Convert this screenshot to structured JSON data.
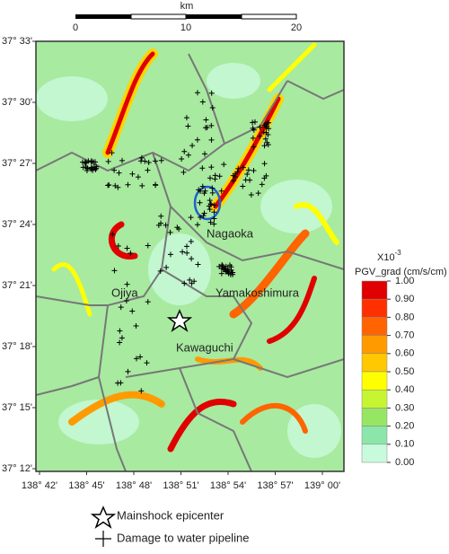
{
  "scale_bar": {
    "unit": "km",
    "ticks": [
      0,
      10,
      20
    ]
  },
  "lat_labels": [
    "37° 33'",
    "37° 30'",
    "37° 27'",
    "37° 24'",
    "37° 21'",
    "37° 18'",
    "37° 15'",
    "37° 12'"
  ],
  "lon_labels": [
    "138° 42'",
    "138° 45'",
    "138° 48'",
    "138° 51'",
    "138° 54'",
    "138° 57'",
    "139° 00'"
  ],
  "places": [
    "Nagaoka",
    "Ojiya",
    "Yamakoshimura",
    "Kawaguchi"
  ],
  "colorbar": {
    "title_base": "X10",
    "title_exp": "-3",
    "subtitle": "PGV_grad (cm/s/cm)",
    "levels": [
      {
        "value": 1,
        "label": "1.00"
      },
      {
        "value": 0.9,
        "label": "0.90"
      },
      {
        "value": 0.8,
        "label": "0.80"
      },
      {
        "value": 0.7,
        "label": "0.70"
      },
      {
        "value": 0.6,
        "label": "0.60"
      },
      {
        "value": 0.5,
        "label": "0.50"
      },
      {
        "value": 0.4,
        "label": "0.40"
      },
      {
        "value": 0.3,
        "label": "0.30"
      },
      {
        "value": 0.2,
        "label": "0.20"
      },
      {
        "value": 0.1,
        "label": "0.10"
      },
      {
        "value": 0,
        "label": "0.00"
      }
    ],
    "colors": [
      "#e00000",
      "#ff3000",
      "#ff6400",
      "#ff9a00",
      "#ffc800",
      "#ffff00",
      "#c8f532",
      "#96e664",
      "#8ce6aa",
      "#c8fadc"
    ]
  },
  "legend": {
    "epicenter": "Mainshock epicenter",
    "damage": "Damage to water pipeline"
  }
}
